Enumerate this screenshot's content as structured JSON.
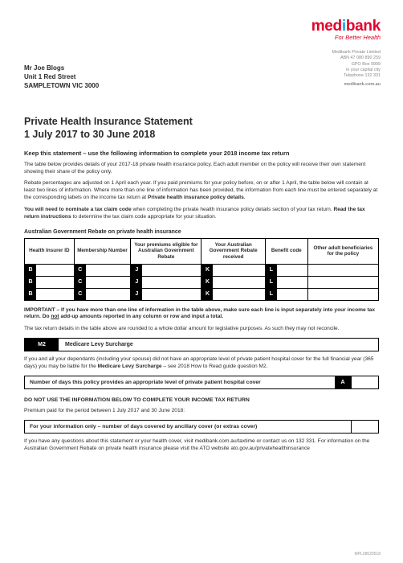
{
  "brand": {
    "name_pre": "med",
    "name_i": "i",
    "name_post": "bank",
    "tagline": "For Better Health"
  },
  "corp": {
    "line1": "Medibank Private Limited",
    "line2": "ABN 47 080 890 259",
    "line3": "GPO Box 9999",
    "line4": "in your capital city",
    "line5": "Telephone 132 331",
    "web": "medibank.com.au"
  },
  "addressee": {
    "name": "Mr Joe Blogs",
    "addr1": "Unit 1 Red Street",
    "addr2": "SAMPLETOWN VIC 3000"
  },
  "title_line1": "Private Health Insurance Statement",
  "title_line2": "1 July 2017 to 30 June 2018",
  "keep": "Keep this statement – use the following information to complete your 2018 income tax return",
  "p1": "The table below provides details of your 2017-18 private health insurance policy. Each adult member on the policy will receive their own statement showing their share of the policy only.",
  "p2a": "Rebate percentages are adjusted on 1 April each year. If you paid premiums for your policy before, on or after 1 April, the table below will contain at least two lines of information. Where more than one line of information has been provided, the information from each line must be entered separately at the corresponding labels on the income tax return at ",
  "p2b": "Private health insurance policy details",
  "p2c": ".",
  "p3a": "You will need to nominate a tax claim code",
  "p3b": " when completing the private health insurance policy details section of your tax return. ",
  "p3c": "Read the tax return instructions",
  "p3d": " to determine the tax claim code appropriate for your situation.",
  "subhead": "Australian Government Rebate on private health insurance",
  "table": {
    "headers": [
      "Health Insurer ID",
      "Membership Number",
      "Your premiums eligible for Australian Government Rebate",
      "Your Australian Government Rebate received",
      "Benefit code",
      "Other adult beneficiaries for the policy"
    ],
    "col_widths_pct": [
      14,
      16,
      20,
      18,
      12,
      20
    ],
    "row_tags": [
      [
        "B",
        "C",
        "J",
        "K",
        "L",
        ""
      ],
      [
        "B",
        "C",
        "J",
        "K",
        "L",
        ""
      ],
      [
        "B",
        "C",
        "J",
        "K",
        "L",
        ""
      ]
    ]
  },
  "important_a": "IMPORTANT – If you have more than one line of information in the table above, make sure each line is input separately into your income tax return. Do ",
  "important_b": "not",
  "important_c": " add-up amounts reported in any column or row and input a total.",
  "p4": "The tax return details in the table above are rounded to a whole dollar amount for legislative purposes. As such they may not reconcile.",
  "m2": {
    "tag": "M2",
    "label": "Medicare Levy Surcharge"
  },
  "p5a": "If you and all your dependants (including your spouse) did not have an appropriate level of private patient hospital cover for the full financial year (365 days) you may be liable for the ",
  "p5b": "Medicare Levy Surcharge",
  "p5c": " – see 2018 How to Read guide question M2.",
  "box_days": {
    "label": "Number of days this policy provides an appropriate level of private patient hospital cover",
    "tag": "A"
  },
  "donot": "DO NOT USE THE INFORMATION BELOW TO COMPLETE YOUR INCOME TAX RETURN",
  "p6": "Premium paid for the period between 1 July 2017 and 30 June 2018:",
  "box_info": {
    "label": "For your information only – number of days covered by ancillary cover (or extras cover)"
  },
  "p7": "If you have any questions about this statement or your health cover, visit medibank.com.au/taxtime or contact us on 132 331. For information on the Australian Government Rebate on private health insurance please visit the ATO website ato.gov.au/privatehealthinsurance",
  "footer_code": "MPL28620518"
}
